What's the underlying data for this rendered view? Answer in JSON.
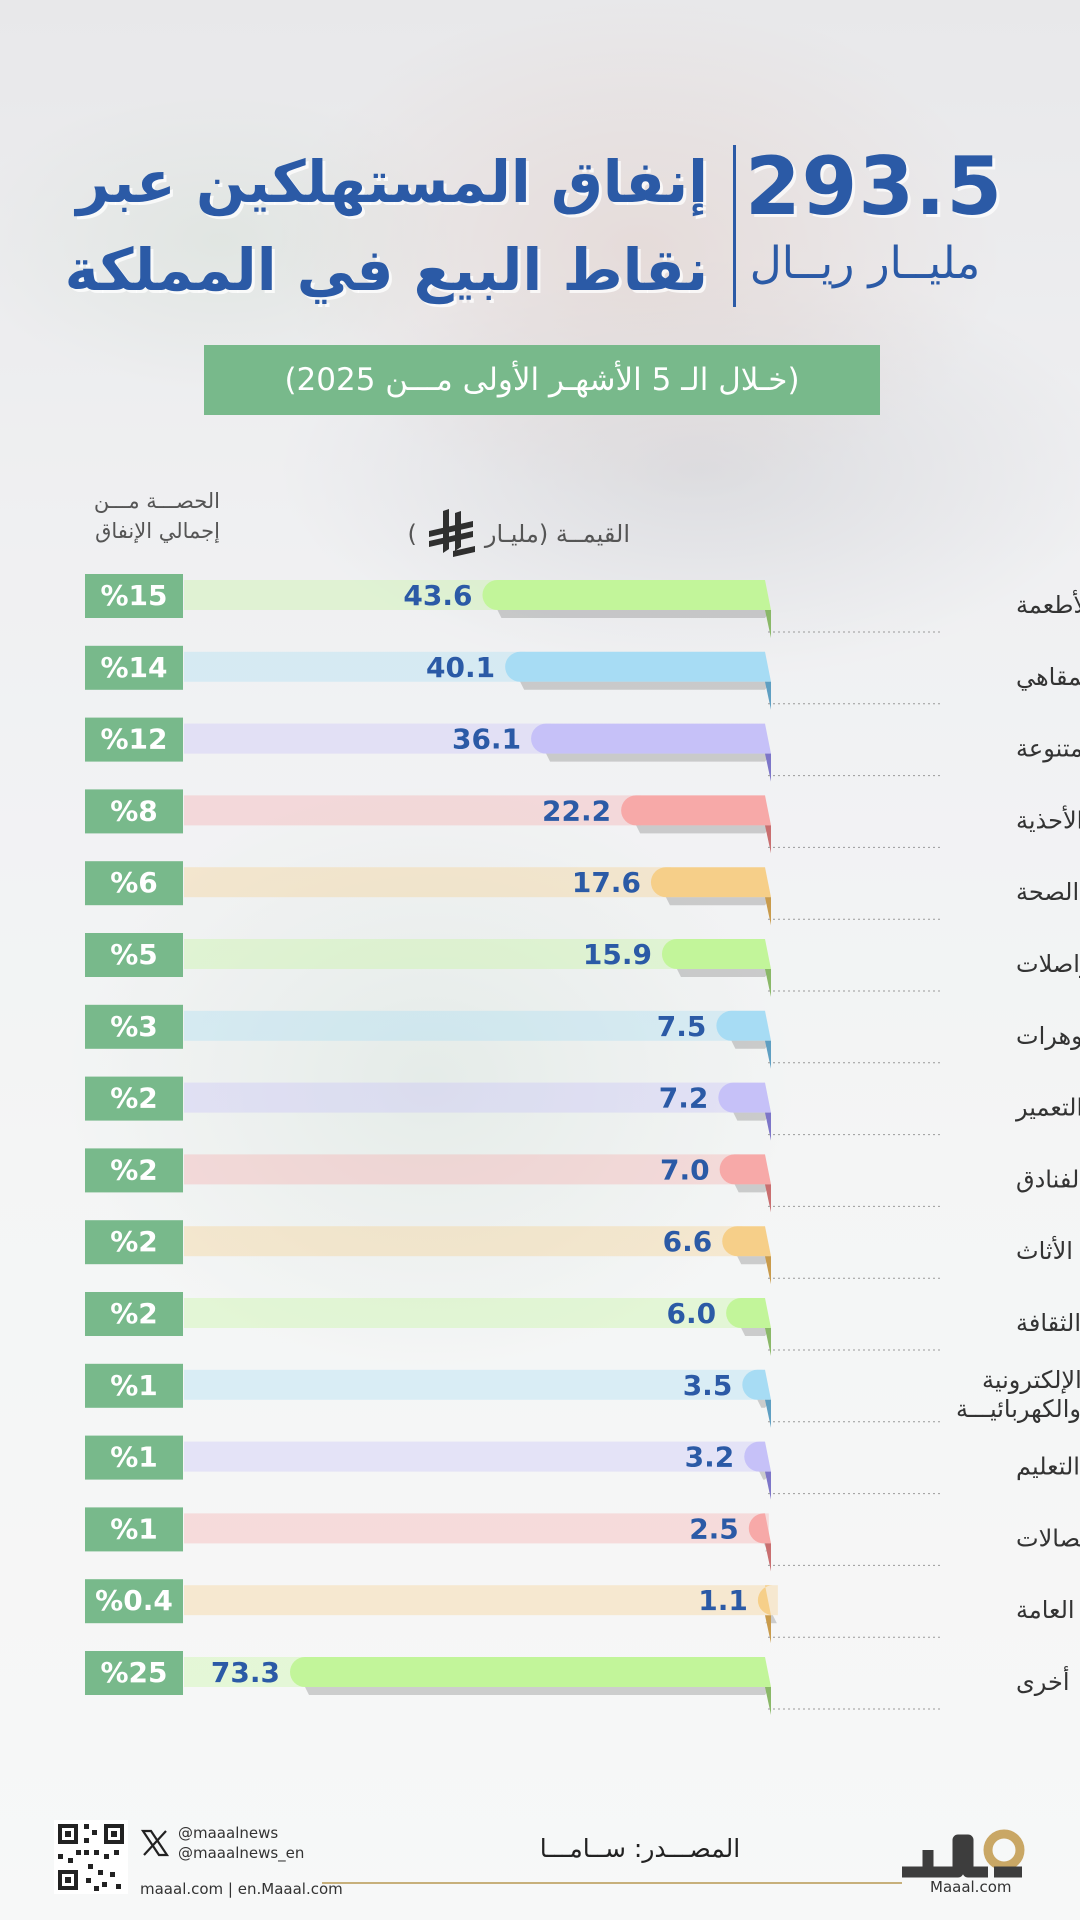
{
  "header": {
    "total_value": "293.5",
    "total_unit": "مليــار ريــال",
    "title_line1": "إنفاق المستهلكين عبر",
    "title_line2": "نقاط البيع في المملكة",
    "period": "(خـلال الـ 5 الأشهـر الأولى مـــن 2025)"
  },
  "columns": {
    "share_header_line1": "الحصـــة مـــن",
    "share_header_line2": "إجمالي الإنفاق",
    "value_header_left": "القيمــة (مليـار",
    "value_header_right": ")"
  },
  "colors": {
    "title_blue": "#2b5aa6",
    "share_green": "#78b98b",
    "palette": [
      "#c2f59a",
      "#a7dcf4",
      "#c6c1f8",
      "#f7a9a8",
      "#f6cf89"
    ],
    "palette_dark": [
      "#8ab868",
      "#5f9fc2",
      "#7d76c8",
      "#c96f70",
      "#c99b4c"
    ]
  },
  "chart_data": {
    "type": "bar",
    "orientation": "horizontal",
    "categories": [
      "المشروبات والأطعمة",
      "المطاعم والمقاهي",
      "خدمات وسلع متنوعة",
      "الملابس والأحذية",
      "الصحة",
      "المواصلات",
      "المجوهرات",
      "مواد البناء و التعمير",
      "الفنادق",
      "الأثاث",
      "الترفيه والثقافة",
      [
        "الأجهزه الإلكترونية",
        "والكهربائيـــة"
      ],
      "التعليم",
      "الاتصالات",
      "المنافع العامة",
      "أخرى"
    ],
    "values": [
      43.6,
      40.1,
      36.1,
      22.2,
      17.6,
      15.9,
      7.5,
      7.2,
      7.0,
      6.6,
      6.0,
      3.5,
      3.2,
      2.5,
      1.1,
      73.3
    ],
    "value_labels": [
      "43.6",
      "40.1",
      "36.1",
      "22.2",
      "17.6",
      "15.9",
      "7.5",
      "7.2",
      "7.0",
      "6.6",
      "6.0",
      "3.5",
      "3.2",
      "2.5",
      "1.1",
      "73.3"
    ],
    "share_labels": [
      "%15",
      "%14",
      "%12",
      "%8",
      "%6",
      "%5",
      "%3",
      "%2",
      "%2",
      "%2",
      "%2",
      "%1",
      "%1",
      "%1",
      "%0.4",
      "%25"
    ],
    "xlim": [
      0,
      73.3
    ]
  },
  "footer": {
    "twitter_handle": "@maaalnews",
    "twitter_handle_en": "@maaalnews_en",
    "websites": "maaal.com | en.Maaal.com",
    "source": "المصـــدر: ســامـــا",
    "logo_site": "Maaal.com",
    "icons": [
      "qr-code-icon",
      "x-icon",
      "maaal-logo"
    ]
  }
}
